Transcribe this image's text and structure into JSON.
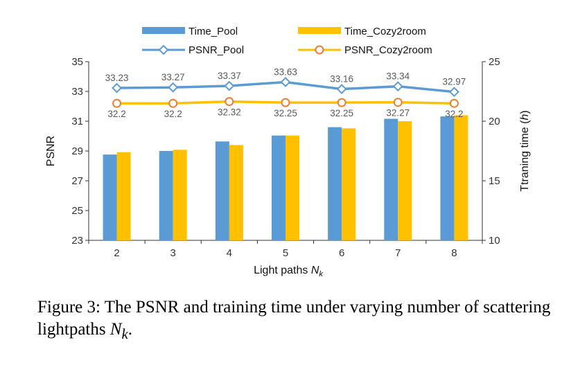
{
  "chart_data": {
    "type": "bar",
    "categories": [
      "2",
      "3",
      "4",
      "5",
      "6",
      "7",
      "8"
    ],
    "xlabel": "Light paths ",
    "xlabel_var": "N",
    "xlabel_sub": "k",
    "ylabel_left": "PSNR",
    "ylabel_right": "Ttraning time (",
    "ylabel_right_var": "h",
    "ylabel_right_close": ")",
    "y_left_lim": [
      23,
      35
    ],
    "y_left_ticks": [
      "23",
      "25",
      "27",
      "29",
      "31",
      "33",
      "35"
    ],
    "y_right_lim": [
      10,
      25
    ],
    "y_right_ticks": [
      "10",
      "15",
      "20",
      "25"
    ],
    "grid": false,
    "legend_position": "top",
    "bar_series": [
      {
        "name": "Time_Pool",
        "color": "#5B9BD5",
        "axis": "right",
        "values": [
          17.2,
          17.5,
          18.3,
          18.8,
          19.5,
          20.2,
          20.4
        ]
      },
      {
        "name": "Time_Cozy2room",
        "color": "#FFC000",
        "axis": "right",
        "values": [
          17.4,
          17.6,
          18.0,
          18.8,
          19.4,
          20.0,
          20.5
        ]
      }
    ],
    "line_series": [
      {
        "name": "PSNR_Pool",
        "color": "#5B9BD5",
        "marker": "diamond",
        "axis": "left",
        "values": [
          33.23,
          33.27,
          33.37,
          33.63,
          33.16,
          33.34,
          32.97
        ],
        "labels": [
          "33.23",
          "33.27",
          "33.37",
          "33.63",
          "33.16",
          "33.34",
          "32.97"
        ]
      },
      {
        "name": "PSNR_Cozy2room",
        "color": "#ED7D31",
        "line_color": "#FFC000",
        "marker": "circle",
        "axis": "left",
        "values": [
          32.2,
          32.2,
          32.32,
          32.25,
          32.25,
          32.27,
          32.2
        ],
        "labels": [
          "32.2",
          "32.2",
          "32.32",
          "32.25",
          "32.25",
          "32.27",
          "32.2"
        ]
      }
    ]
  },
  "caption": {
    "text": "Figure 3: The PSNR and training time under varying number of scattering lightpaths ",
    "var": "N",
    "sub": "k",
    "end": "."
  }
}
